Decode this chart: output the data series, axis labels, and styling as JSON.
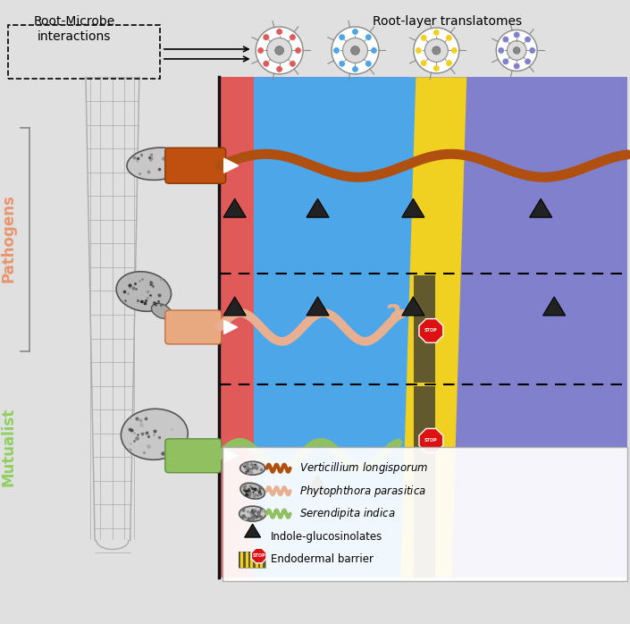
{
  "bg_color": "#e0e0e0",
  "layer_colors": {
    "epidermis": "#e05a5a",
    "cortex": "#4da6e8",
    "endodermis": "#f0d020",
    "stele": "#8080cc"
  },
  "pathogens_color": "#e8956e",
  "mutualist_color": "#90d060",
  "wavy_colors": {
    "verticillium": "#b05010",
    "phytophthora": "#e8b090",
    "serendipita": "#90c060"
  },
  "legend_entries": [
    {
      "label": "Verticillium longisporum",
      "color": "#c06010",
      "style": "wavy"
    },
    {
      "label": "Phytophthora parasitica",
      "color": "#e8b090",
      "style": "wavy"
    },
    {
      "label": "Serendipita indica",
      "color": "#90c060",
      "style": "wavy"
    },
    {
      "label": "Indole-glucosinolates",
      "color": "#222222",
      "style": "triangle"
    },
    {
      "label": "Endodermal barrier",
      "color": "#cc0000",
      "style": "stop"
    }
  ]
}
